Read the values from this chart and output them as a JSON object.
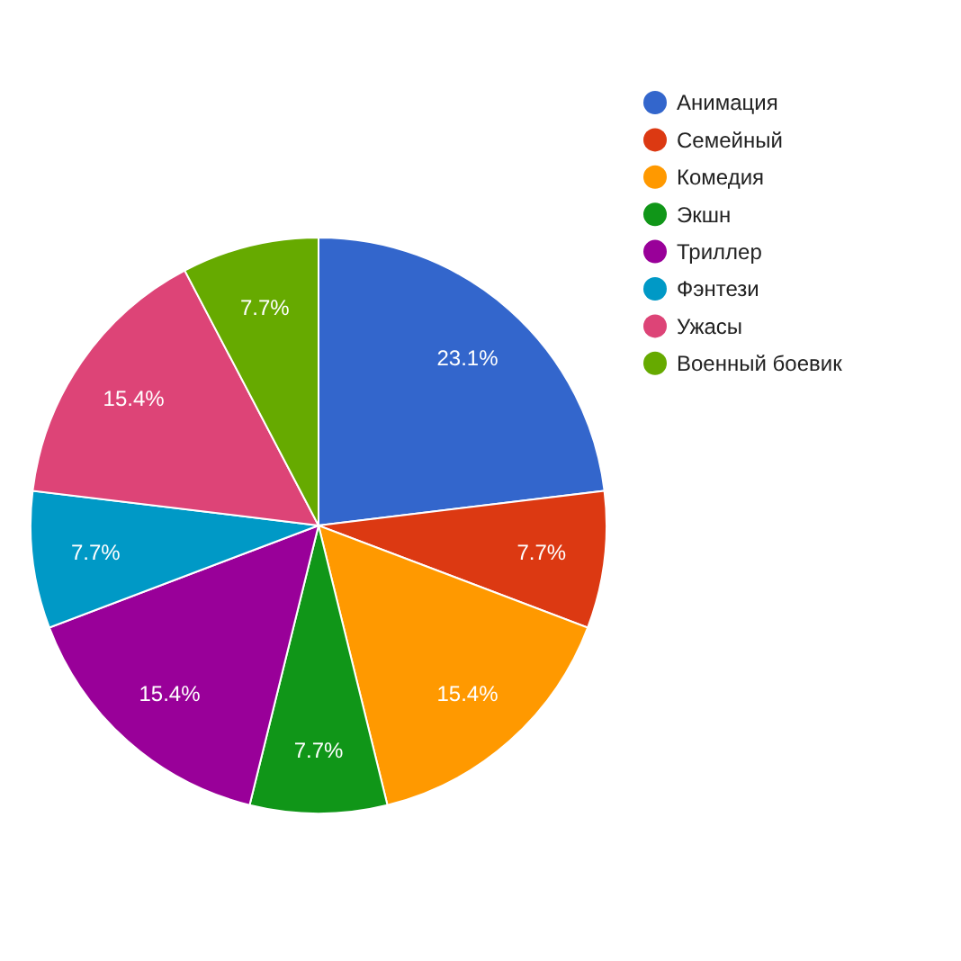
{
  "chart_data": {
    "type": "pie",
    "categories": [
      "Анимация",
      "Семейный",
      "Комедия",
      "Экшн",
      "Триллер",
      "Фэнтези",
      "Ужасы",
      "Военный боевик"
    ],
    "values": [
      23.1,
      7.7,
      15.4,
      7.7,
      15.4,
      7.7,
      15.4,
      7.7
    ],
    "colors": [
      "#3366cc",
      "#dc3912",
      "#ff9900",
      "#109618",
      "#990099",
      "#0099c6",
      "#dd4477",
      "#66aa00"
    ],
    "value_labels": [
      "23.1%",
      "7.7%",
      "15.4%",
      "7.7%",
      "15.4%",
      "7.7%",
      "15.4%",
      "7.7%"
    ],
    "legend": "top right"
  }
}
